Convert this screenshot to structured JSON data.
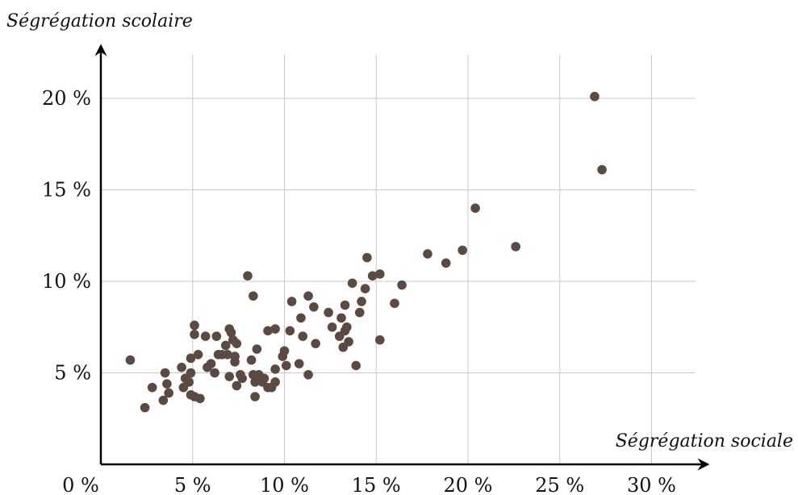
{
  "chart_data": {
    "type": "scatter",
    "ylabel": "Ségrégation scolaire",
    "xlabel": "Ségrégation sociale",
    "x_ticks": [
      "0 %",
      "5 %",
      "10 %",
      "15 %",
      "20 %",
      "25 %",
      "30 %"
    ],
    "y_ticks": [
      "5 %",
      "10 %",
      "15 %",
      "20 %"
    ],
    "x_tick_values": [
      0,
      5,
      10,
      15,
      20,
      25,
      30
    ],
    "y_tick_values": [
      5,
      10,
      15,
      20
    ],
    "xlim": [
      0,
      33
    ],
    "ylim": [
      0,
      22.5
    ],
    "grid": true,
    "colors": {
      "point": "#5b4a41",
      "grid": "#c8c8c8",
      "axis": "#000000"
    },
    "points": [
      [
        1.6,
        5.7
      ],
      [
        2.4,
        3.1
      ],
      [
        2.8,
        4.2
      ],
      [
        3.4,
        3.5
      ],
      [
        3.5,
        5.0
      ],
      [
        3.6,
        4.4
      ],
      [
        3.7,
        3.9
      ],
      [
        4.4,
        5.3
      ],
      [
        4.5,
        4.2
      ],
      [
        4.6,
        4.7
      ],
      [
        4.8,
        4.5
      ],
      [
        4.9,
        5.0
      ],
      [
        4.9,
        3.8
      ],
      [
        4.9,
        5.8
      ],
      [
        5.1,
        3.7
      ],
      [
        5.1,
        7.1
      ],
      [
        5.1,
        7.6
      ],
      [
        5.3,
        6.0
      ],
      [
        5.4,
        3.6
      ],
      [
        5.7,
        7.0
      ],
      [
        5.8,
        5.3
      ],
      [
        6.0,
        5.5
      ],
      [
        6.2,
        5.0
      ],
      [
        6.3,
        7.0
      ],
      [
        6.4,
        6.0
      ],
      [
        6.6,
        6.0
      ],
      [
        6.8,
        6.5
      ],
      [
        6.9,
        6.0
      ],
      [
        7.0,
        4.8
      ],
      [
        7.0,
        7.4
      ],
      [
        7.1,
        7.2
      ],
      [
        7.2,
        6.8
      ],
      [
        7.3,
        5.6
      ],
      [
        7.3,
        5.9
      ],
      [
        7.4,
        6.6
      ],
      [
        7.4,
        4.3
      ],
      [
        7.6,
        4.9
      ],
      [
        7.7,
        4.7
      ],
      [
        8.0,
        10.3
      ],
      [
        8.2,
        5.7
      ],
      [
        8.3,
        4.9
      ],
      [
        8.3,
        9.2
      ],
      [
        8.4,
        3.7
      ],
      [
        8.4,
        4.5
      ],
      [
        8.5,
        6.3
      ],
      [
        8.6,
        4.9
      ],
      [
        8.8,
        4.5
      ],
      [
        8.9,
        4.7
      ],
      [
        9.1,
        4.2
      ],
      [
        9.1,
        7.3
      ],
      [
        9.3,
        4.2
      ],
      [
        9.5,
        4.5
      ],
      [
        9.5,
        5.2
      ],
      [
        9.5,
        7.4
      ],
      [
        9.9,
        5.9
      ],
      [
        10.0,
        6.2
      ],
      [
        10.1,
        5.4
      ],
      [
        10.3,
        7.3
      ],
      [
        10.4,
        8.9
      ],
      [
        10.8,
        5.5
      ],
      [
        10.9,
        8.0
      ],
      [
        11.0,
        7.0
      ],
      [
        11.3,
        4.9
      ],
      [
        11.3,
        9.2
      ],
      [
        11.6,
        8.6
      ],
      [
        11.7,
        6.6
      ],
      [
        12.4,
        8.3
      ],
      [
        12.6,
        7.5
      ],
      [
        13.0,
        7.0
      ],
      [
        13.1,
        8.0
      ],
      [
        13.2,
        6.4
      ],
      [
        13.3,
        7.3
      ],
      [
        13.3,
        8.7
      ],
      [
        13.4,
        7.5
      ],
      [
        13.5,
        6.7
      ],
      [
        13.7,
        9.9
      ],
      [
        13.9,
        5.4
      ],
      [
        14.1,
        8.3
      ],
      [
        14.2,
        8.9
      ],
      [
        14.4,
        9.6
      ],
      [
        14.5,
        11.3
      ],
      [
        14.8,
        10.3
      ],
      [
        15.2,
        10.4
      ],
      [
        15.2,
        6.8
      ],
      [
        16.0,
        8.8
      ],
      [
        16.4,
        9.8
      ],
      [
        17.8,
        11.5
      ],
      [
        18.8,
        11.0
      ],
      [
        19.7,
        11.7
      ],
      [
        20.4,
        14.0
      ],
      [
        22.6,
        11.9
      ],
      [
        26.9,
        20.1
      ],
      [
        27.3,
        16.1
      ]
    ]
  }
}
